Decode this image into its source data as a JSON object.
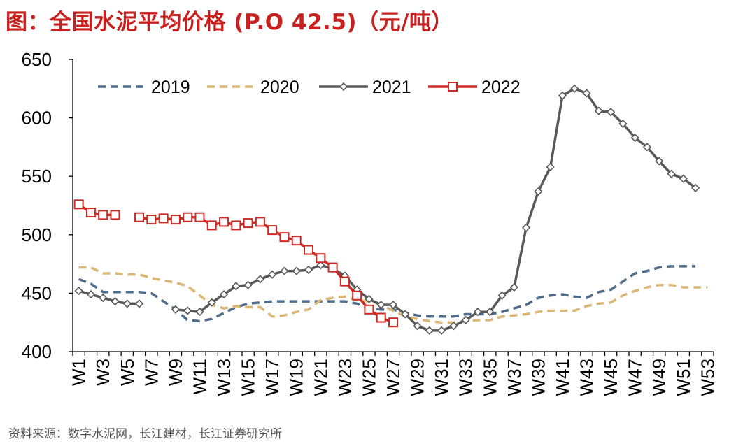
{
  "title": "图：全国水泥平均价格 (P.O 42.5)（元/吨）",
  "source": "资料来源：数字水泥网，长江建材，长江证券研究所",
  "colors": {
    "title": "#c8201f",
    "axis": "#000000"
  },
  "chart_data": {
    "type": "line",
    "title": "图：全国水泥平均价格 (P.O 42.5)（元/吨）",
    "xlabel": "",
    "ylabel": "",
    "ylim": [
      400,
      650
    ],
    "yticks": [
      400,
      450,
      500,
      550,
      600,
      650
    ],
    "categories": [
      "W1",
      "W2",
      "W3",
      "W4",
      "W5",
      "W6",
      "W7",
      "W8",
      "W9",
      "W10",
      "W11",
      "W12",
      "W13",
      "W14",
      "W15",
      "W16",
      "W17",
      "W18",
      "W19",
      "W20",
      "W21",
      "W22",
      "W23",
      "W24",
      "W25",
      "W26",
      "W27",
      "W28",
      "W29",
      "W30",
      "W31",
      "W32",
      "W33",
      "W34",
      "W35",
      "W36",
      "W37",
      "W38",
      "W39",
      "W40",
      "W41",
      "W42",
      "W43",
      "W44",
      "W45",
      "W46",
      "W47",
      "W48",
      "W49",
      "W50",
      "W51",
      "W52",
      "W53"
    ],
    "tick_labels": [
      "W1",
      "W3",
      "W5",
      "W7",
      "W9",
      "W11",
      "W13",
      "W15",
      "W17",
      "W19",
      "W21",
      "W23",
      "W25",
      "W27",
      "W29",
      "W31",
      "W33",
      "W35",
      "W37",
      "W39",
      "W41",
      "W43",
      "W45",
      "W47",
      "W49",
      "W51",
      "W53"
    ],
    "legend_position": "top",
    "grid": false,
    "series": [
      {
        "name": "2019",
        "color": "#4d6b8a",
        "dash": "dashed",
        "marker": "none",
        "values": [
          462,
          458,
          451,
          451,
          451,
          451,
          450,
          443,
          436,
          427,
          426,
          428,
          433,
          438,
          441,
          442,
          443,
          443,
          443,
          443,
          443,
          443,
          443,
          441,
          437,
          436,
          436,
          433,
          431,
          430,
          430,
          430,
          432,
          432,
          432,
          434,
          437,
          440,
          446,
          448,
          449,
          447,
          446,
          451,
          453,
          460,
          467,
          469,
          472,
          473,
          473,
          473,
          null
        ]
      },
      {
        "name": "2020",
        "color": "#dbb776",
        "dash": "dashed",
        "marker": "none",
        "values": [
          472,
          472,
          467,
          467,
          466,
          466,
          463,
          461,
          459,
          456,
          448,
          440,
          437,
          439,
          438,
          438,
          430,
          431,
          434,
          436,
          444,
          446,
          447,
          444,
          443,
          440,
          435,
          430,
          428,
          426,
          425,
          425,
          426,
          427,
          427,
          430,
          431,
          432,
          434,
          435,
          435,
          435,
          439,
          441,
          442,
          448,
          452,
          455,
          457,
          457,
          455,
          455,
          455
        ]
      },
      {
        "name": "2021",
        "color": "#595959",
        "dash": "solid",
        "marker": "diamond",
        "values": [
          452,
          449,
          446,
          443,
          441,
          441,
          null,
          null,
          436,
          435,
          434,
          442,
          449,
          456,
          457,
          462,
          466,
          469,
          469,
          470,
          474,
          471,
          465,
          453,
          445,
          440,
          440,
          432,
          422,
          418,
          418,
          422,
          427,
          434,
          434,
          448,
          455,
          506,
          537,
          558,
          619,
          625,
          621,
          606,
          605,
          595,
          583,
          575,
          563,
          552,
          548,
          540,
          null
        ]
      },
      {
        "name": "2022",
        "color": "#cc2a24",
        "dash": "solid",
        "marker": "square",
        "values": [
          526,
          519,
          517,
          517,
          null,
          515,
          513,
          514,
          513,
          515,
          515,
          508,
          511,
          508,
          510,
          511,
          504,
          498,
          495,
          487,
          480,
          472,
          460,
          448,
          436,
          429,
          425,
          null,
          null,
          null,
          null,
          null,
          null,
          null,
          null,
          null,
          null,
          null,
          null,
          null,
          null,
          null,
          null,
          null,
          null,
          null,
          null,
          null,
          null,
          null,
          null,
          null,
          null
        ]
      }
    ]
  }
}
